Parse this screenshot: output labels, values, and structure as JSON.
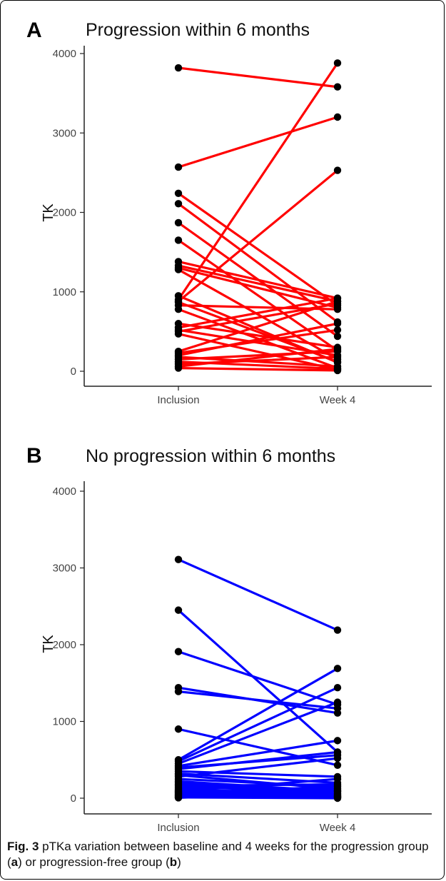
{
  "chart_data": [
    {
      "type": "line",
      "panel_letter": "A",
      "title": "Progression within 6 months",
      "ylabel": "TK",
      "xlabel": "",
      "categories": [
        "Inclusion",
        "Week 4"
      ],
      "ylim": [
        0,
        4000
      ],
      "yticks": [
        0,
        1000,
        2000,
        3000,
        4000
      ],
      "grid": false,
      "color": "#ff0000",
      "pairs": [
        [
          3820,
          3580
        ],
        [
          2570,
          3200
        ],
        [
          2240,
          830
        ],
        [
          2110,
          620
        ],
        [
          1870,
          440
        ],
        [
          1650,
          260
        ],
        [
          1380,
          920
        ],
        [
          1330,
          880
        ],
        [
          1300,
          800
        ],
        [
          1280,
          150
        ],
        [
          950,
          110
        ],
        [
          900,
          3880
        ],
        [
          880,
          2530
        ],
        [
          870,
          120
        ],
        [
          830,
          780
        ],
        [
          780,
          40
        ],
        [
          600,
          300
        ],
        [
          550,
          920
        ],
        [
          520,
          200
        ],
        [
          500,
          850
        ],
        [
          470,
          20
        ],
        [
          250,
          880
        ],
        [
          230,
          520
        ],
        [
          200,
          600
        ],
        [
          180,
          60
        ],
        [
          150,
          250
        ],
        [
          120,
          30
        ],
        [
          90,
          180
        ],
        [
          60,
          280
        ],
        [
          40,
          10
        ]
      ]
    },
    {
      "type": "line",
      "panel_letter": "B",
      "title": "No progression within 6 months",
      "ylabel": "TK",
      "xlabel": "",
      "categories": [
        "Inclusion",
        "Week 4"
      ],
      "ylim": [
        0,
        4000
      ],
      "yticks": [
        0,
        1000,
        2000,
        3000,
        4000
      ],
      "grid": false,
      "color": "#0000ff",
      "pairs": [
        [
          3110,
          2190
        ],
        [
          2450,
          600
        ],
        [
          1910,
          1220
        ],
        [
          1440,
          1110
        ],
        [
          1390,
          1170
        ],
        [
          900,
          430
        ],
        [
          500,
          1690
        ],
        [
          480,
          1440
        ],
        [
          450,
          1250
        ],
        [
          420,
          750
        ],
        [
          400,
          560
        ],
        [
          380,
          600
        ],
        [
          350,
          280
        ],
        [
          320,
          200
        ],
        [
          300,
          120
        ],
        [
          280,
          520
        ],
        [
          250,
          150
        ],
        [
          220,
          90
        ],
        [
          200,
          60
        ],
        [
          180,
          30
        ],
        [
          160,
          180
        ],
        [
          140,
          100
        ],
        [
          120,
          40
        ],
        [
          100,
          20
        ],
        [
          90,
          250
        ],
        [
          80,
          130
        ],
        [
          70,
          10
        ],
        [
          60,
          70
        ],
        [
          50,
          5
        ],
        [
          40,
          160
        ],
        [
          30,
          20
        ],
        [
          20,
          50
        ],
        [
          10,
          0
        ],
        [
          5,
          90
        ]
      ]
    }
  ],
  "caption": {
    "fig_label": "Fig. 3",
    "text_1": " pTKa variation between baseline and 4 weeks for the progression group (",
    "letter_a": "a",
    "text_2": ") or progression-free group (",
    "letter_b": "b",
    "text_3": ")"
  }
}
